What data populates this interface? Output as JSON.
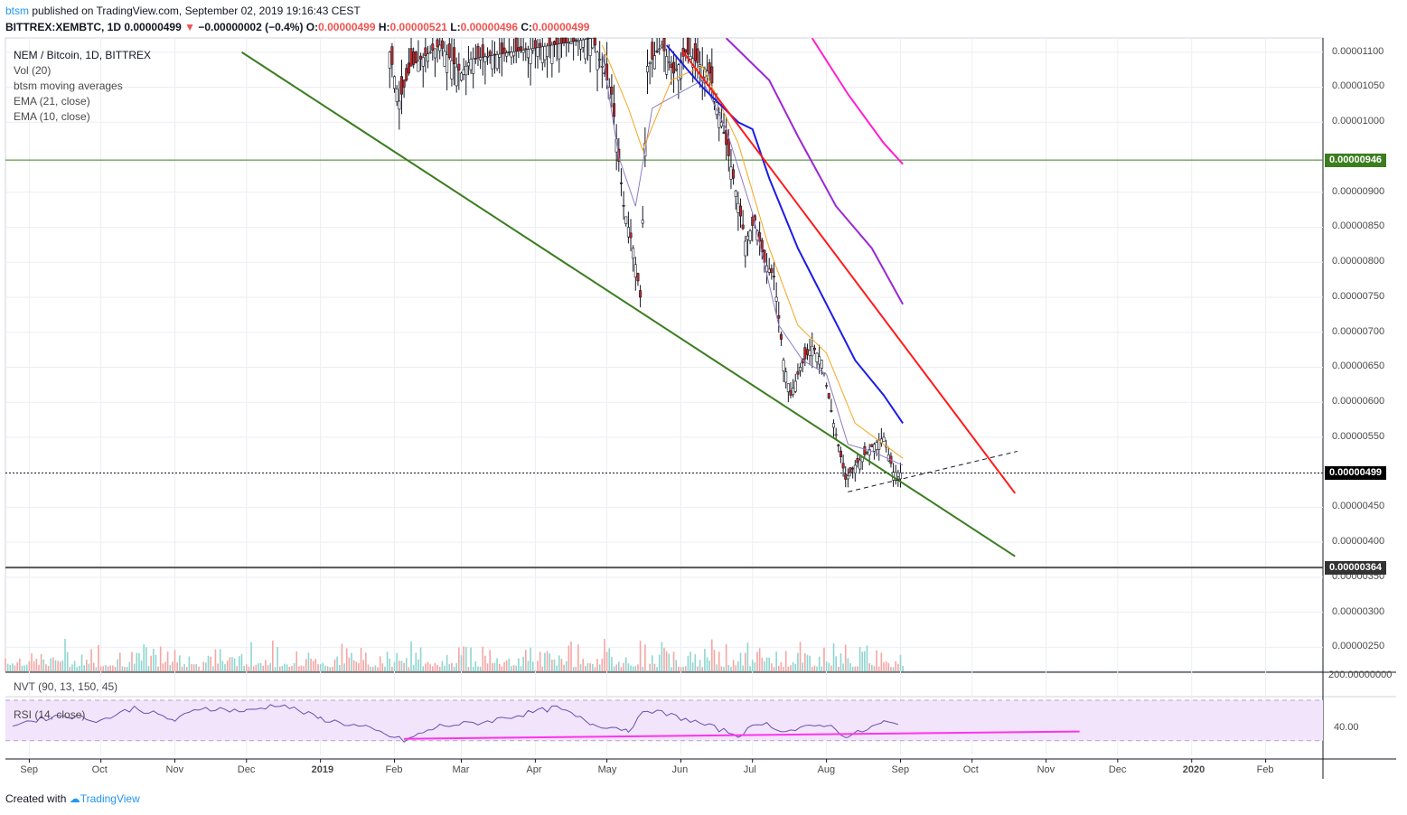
{
  "header": {
    "user": "btsm",
    "published": "published on TradingView.com, September 02, 2019 19:16:43 CEST",
    "symbol": "BITTREX:XEMBTC, 1D",
    "last": "0.00000499",
    "change_arrow": "▼",
    "change": "−0.00000002 (−0.4%)",
    "o_label": "O:",
    "o": "0.00000499",
    "h_label": "H:",
    "h": "0.00000521",
    "l_label": "L:",
    "l": "0.00000496",
    "c_label": "C:",
    "c": "0.00000499"
  },
  "legend": {
    "title": "NEM / Bitcoin, 1D, BITTREX",
    "vol": "Vol (20)",
    "ma": "btsm moving averages",
    "ema21": "EMA (21, close)",
    "ema10": "EMA (10, close)"
  },
  "indicators": {
    "nvt": "NVT (90, 13, 150, 45)",
    "rsi": "RSI (14, close)",
    "rsi_tick": "40.00"
  },
  "footer": {
    "created": "Created with",
    "brand": "TradingView"
  },
  "colors": {
    "up": "#26a69a",
    "down": "#ef5350",
    "ema21": "#f5a623",
    "ema10": "#8e7cc3",
    "ma_blue": "#1c1ce6",
    "ma_purple": "#9c27d4",
    "ma_pink": "#ff1dd3",
    "trend_green": "#3b7d1f",
    "trend_red": "#ff1a1a",
    "rsi_line": "#6a4fb0",
    "rsi_div": "#ff33ee"
  },
  "chart_data": {
    "type": "candlestick",
    "symbol": "XEMBTC",
    "y_axis_ticks": [
      "0.00001100",
      "0.00001050",
      "0.00001000",
      "0.00000900",
      "0.00000850",
      "0.00000800",
      "0.00000750",
      "0.00000700",
      "0.00000650",
      "0.00000600",
      "0.00000550",
      "0.00000450",
      "0.00000400",
      "0.00000350",
      "0.00000300",
      "0.00000250"
    ],
    "vol_axis_label": "200.00000000",
    "x_axis_ticks": [
      "Sep",
      "Oct",
      "Nov",
      "Dec",
      "2019",
      "Feb",
      "Mar",
      "Apr",
      "May",
      "Jun",
      "Jul",
      "Aug",
      "Sep",
      "Oct",
      "Nov",
      "Dec",
      "2020",
      "Feb"
    ],
    "ylim": [
      2.3e-06,
      1.12e-05
    ],
    "horizontal_levels": [
      {
        "label": "0.00000946",
        "value": 9.46e-06,
        "color": "#3b7d1f"
      },
      {
        "label": "0.00000499",
        "value": 4.99e-06,
        "color": "#131722"
      },
      {
        "label": "0.00000364",
        "value": 3.64e-06,
        "color": "#555555"
      }
    ],
    "price_path": [
      [
        "2019-01-30",
        1.1e-05
      ],
      [
        "2019-02-03",
        1.03e-05
      ],
      [
        "2019-02-08",
        1.08e-05
      ],
      [
        "2019-02-20",
        1.11e-05
      ],
      [
        "2019-03-01",
        1.07e-05
      ],
      [
        "2019-03-05",
        1.09e-05
      ],
      [
        "2019-04-25",
        1.12e-05
      ],
      [
        "2019-05-03",
        1.04e-05
      ],
      [
        "2019-05-08",
        8.8e-06
      ],
      [
        "2019-05-12",
        8.2e-06
      ],
      [
        "2019-05-15",
        7.5e-06
      ],
      [
        "2019-05-18",
        1.08e-05
      ],
      [
        "2019-05-24",
        1.11e-05
      ],
      [
        "2019-05-29",
        1.07e-05
      ],
      [
        "2019-06-03",
        1.1e-05
      ],
      [
        "2019-06-13",
        1.07e-05
      ],
      [
        "2019-06-18",
        1e-05
      ],
      [
        "2019-06-23",
        9.2e-06
      ],
      [
        "2019-06-28",
        8.3e-06
      ],
      [
        "2019-07-02",
        8.6e-06
      ],
      [
        "2019-07-06",
        8e-06
      ],
      [
        "2019-07-10",
        7.8e-06
      ],
      [
        "2019-07-14",
        6.6e-06
      ],
      [
        "2019-07-17",
        6.1e-06
      ],
      [
        "2019-07-21",
        6.5e-06
      ],
      [
        "2019-07-26",
        6.8e-06
      ],
      [
        "2019-07-30",
        6.6e-06
      ],
      [
        "2019-08-04",
        5.7e-06
      ],
      [
        "2019-08-09",
        4.9e-06
      ],
      [
        "2019-08-13",
        5.1e-06
      ],
      [
        "2019-08-21",
        5.4e-06
      ],
      [
        "2019-08-25",
        5.5e-06
      ],
      [
        "2019-08-29",
        5e-06
      ],
      [
        "2019-09-02",
        4.99e-06
      ]
    ],
    "moving_averages": [
      {
        "name": "EMA (10, close)",
        "color": "#8e7cc3",
        "points": [
          [
            "2019-04-29",
            1.1e-05
          ],
          [
            "2019-05-06",
            9.5e-06
          ],
          [
            "2019-05-13",
            8.8e-06
          ],
          [
            "2019-05-20",
            1.02e-05
          ],
          [
            "2019-06-10",
            1.06e-05
          ],
          [
            "2019-06-20",
            9.9e-06
          ],
          [
            "2019-07-01",
            8.7e-06
          ],
          [
            "2019-07-12",
            7.1e-06
          ],
          [
            "2019-07-22",
            6.6e-06
          ],
          [
            "2019-08-01",
            6.4e-06
          ],
          [
            "2019-08-10",
            5.4e-06
          ],
          [
            "2019-08-20",
            5.3e-06
          ],
          [
            "2019-09-02",
            5.1e-06
          ]
        ]
      },
      {
        "name": "EMA (21, close)",
        "color": "#f5a623",
        "points": [
          [
            "2019-04-29",
            1.11e-05
          ],
          [
            "2019-05-10",
            1.02e-05
          ],
          [
            "2019-05-16",
            9.6e-06
          ],
          [
            "2019-05-28",
            1.06e-05
          ],
          [
            "2019-06-10",
            1.08e-05
          ],
          [
            "2019-06-25",
            9.7e-06
          ],
          [
            "2019-07-08",
            8.2e-06
          ],
          [
            "2019-07-20",
            7.1e-06
          ],
          [
            "2019-08-01",
            6.7e-06
          ],
          [
            "2019-08-13",
            5.7e-06
          ],
          [
            "2019-08-25",
            5.4e-06
          ],
          [
            "2019-09-02",
            5.2e-06
          ]
        ]
      },
      {
        "name": "MA blue",
        "color": "#1c1ce6",
        "points": [
          [
            "2019-05-26",
            1.11e-05
          ],
          [
            "2019-06-10",
            1.05e-05
          ],
          [
            "2019-06-25",
            1e-05
          ],
          [
            "2019-07-01",
            9.9e-06
          ],
          [
            "2019-07-08",
            9.2e-06
          ],
          [
            "2019-07-20",
            8.2e-06
          ],
          [
            "2019-08-01",
            7.4e-06
          ],
          [
            "2019-08-13",
            6.6e-06
          ],
          [
            "2019-08-25",
            6.1e-06
          ],
          [
            "2019-09-02",
            5.7e-06
          ]
        ]
      },
      {
        "name": "MA purple",
        "color": "#9c27d4",
        "points": [
          [
            "2019-06-20",
            1.12e-05
          ],
          [
            "2019-07-08",
            1.06e-05
          ],
          [
            "2019-07-20",
            9.8e-06
          ],
          [
            "2019-08-05",
            8.8e-06
          ],
          [
            "2019-08-20",
            8.2e-06
          ],
          [
            "2019-09-02",
            7.4e-06
          ]
        ]
      },
      {
        "name": "MA pink",
        "color": "#ff1dd3",
        "points": [
          [
            "2019-07-26",
            1.12e-05
          ],
          [
            "2019-08-10",
            1.04e-05
          ],
          [
            "2019-08-25",
            9.7e-06
          ],
          [
            "2019-09-02",
            9.4e-06
          ]
        ]
      }
    ],
    "trendlines": [
      {
        "name": "green support",
        "color": "#3b7d1f",
        "from": [
          "2018-11-29",
          1.1e-05
        ],
        "to": [
          "2019-10-19",
          3.8e-06
        ]
      },
      {
        "name": "red resistance",
        "color": "#ff1a1a",
        "from": [
          "2019-06-02",
          1.1e-05
        ],
        "to": [
          "2019-10-19",
          4.7e-06
        ]
      },
      {
        "name": "dashed support",
        "color": "#131722",
        "dashed": true,
        "from": [
          "2019-08-10",
          4.72e-06
        ],
        "to": [
          "2019-10-20",
          5.3e-06
        ]
      }
    ],
    "volume_spikes": [
      {
        "date": "2018-11-12",
        "value": 3.23e-07
      },
      {
        "date": "2019-05-18",
        "value": 4.4e-07
      },
      {
        "date": "2019-04-01",
        "value": 3e-07
      }
    ],
    "rsi": {
      "level": "40.00",
      "points": [
        [
          "2018-08-25",
          42
        ],
        [
          "2018-09-15",
          47
        ],
        [
          "2018-10-01",
          44
        ],
        [
          "2018-10-15",
          51
        ],
        [
          "2018-11-01",
          44
        ],
        [
          "2018-11-12",
          51
        ],
        [
          "2018-12-01",
          49
        ],
        [
          "2018-12-15",
          53
        ],
        [
          "2019-01-01",
          45
        ],
        [
          "2019-01-20",
          40
        ],
        [
          "2019-02-05",
          33
        ],
        [
          "2019-02-20",
          41
        ],
        [
          "2019-03-10",
          43
        ],
        [
          "2019-03-25",
          47
        ],
        [
          "2019-04-10",
          51
        ],
        [
          "2019-04-25",
          42
        ],
        [
          "2019-05-10",
          39
        ],
        [
          "2019-05-18",
          50
        ],
        [
          "2019-06-05",
          44
        ],
        [
          "2019-06-25",
          36
        ],
        [
          "2019-07-05",
          43
        ],
        [
          "2019-07-15",
          38
        ],
        [
          "2019-08-01",
          42
        ],
        [
          "2019-08-10",
          35
        ],
        [
          "2019-08-25",
          43
        ],
        [
          "2019-09-02",
          41
        ]
      ],
      "divergence": {
        "from": [
          "2019-02-05",
          34
        ],
        "to": [
          "2019-11-15",
          38
        ],
        "color": "#ff33ee"
      }
    }
  }
}
